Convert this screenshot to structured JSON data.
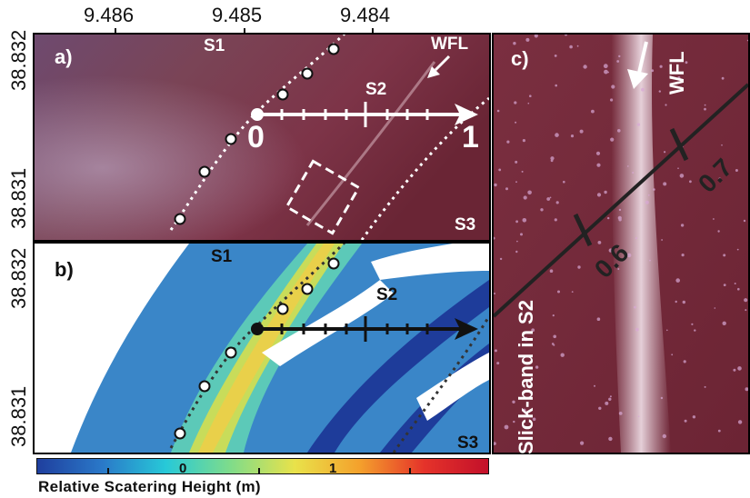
{
  "top_axis": {
    "ticks": [
      "9.486",
      "9.485",
      "9.484"
    ]
  },
  "left_axis": {
    "panel_a": [
      "38.832",
      "38.831"
    ],
    "panel_b": [
      "38.832",
      "38.831"
    ]
  },
  "panel_a": {
    "label": "a)",
    "s1": "S1",
    "s2": "S2",
    "s3": "S3",
    "wfl": "WFL",
    "scale_start": "0",
    "scale_end": "1"
  },
  "panel_b": {
    "label": "b)",
    "s1": "S1",
    "s2": "S2",
    "s3": "S3"
  },
  "panel_c": {
    "label": "c)",
    "wfl": "WFL",
    "caption": "Slick-band in S2",
    "mark_1": "0.6",
    "mark_2": "0.7"
  },
  "colorbar": {
    "title": "Relative Scatering Height (m)",
    "tick_0": "0",
    "tick_1": "1",
    "colors": [
      "#1f3f9e",
      "#2a78c8",
      "#27c9d8",
      "#7fdc8a",
      "#e9e24a",
      "#f4a12c",
      "#e5332a",
      "#c3102a"
    ]
  }
}
